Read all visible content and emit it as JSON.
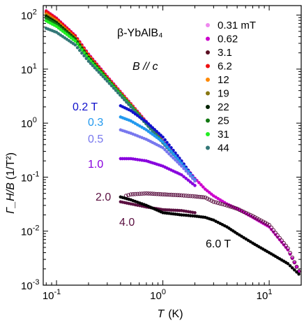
{
  "chart_data": {
    "type": "scatter",
    "title": "",
    "sample": "β-YbAlB₄",
    "field_orientation": "B // c",
    "xlabel": {
      "symbol": "T",
      "unit": "(K)"
    },
    "ylabel": {
      "symbol": "Γ_H/B",
      "unit": "(1/T²)"
    },
    "xscale": "log",
    "yscale": "log",
    "xlim": [
      0.075,
      20
    ],
    "ylim": [
      0.001,
      150
    ],
    "x_ticks": [
      {
        "value": 0.1,
        "base": "10",
        "exp": "-1"
      },
      {
        "value": 1,
        "base": "10",
        "exp": "0"
      },
      {
        "value": 10,
        "base": "10",
        "exp": "1"
      }
    ],
    "y_ticks": [
      {
        "value": 0.001,
        "base": "10",
        "exp": "-3"
      },
      {
        "value": 0.01,
        "base": "10",
        "exp": "-2"
      },
      {
        "value": 0.1,
        "base": "10",
        "exp": "-1"
      },
      {
        "value": 1,
        "base": "10",
        "exp": "0"
      },
      {
        "value": 10,
        "base": "10",
        "exp": "1"
      },
      {
        "value": 100,
        "base": "10",
        "exp": "2"
      }
    ],
    "legend": {
      "position": "top-right",
      "entries": [
        {
          "label": "0.31 mT",
          "color": "#ee88ee"
        },
        {
          "label": "0.62",
          "color": "#cc00cc"
        },
        {
          "label": "3.1",
          "color": "#5a0f22"
        },
        {
          "label": "6.2",
          "color": "#ee1111"
        },
        {
          "label": "12",
          "color": "#ff8800"
        },
        {
          "label": "19",
          "color": "#887711"
        },
        {
          "label": "22",
          "color": "#002200"
        },
        {
          "label": "25",
          "color": "#117711"
        },
        {
          "label": "31",
          "color": "#22ee22"
        },
        {
          "label": "44",
          "color": "#337777"
        }
      ]
    },
    "curve_labels": [
      {
        "text": "0.2 T",
        "color": "#1111cc"
      },
      {
        "text": "0.3",
        "color": "#2299ee"
      },
      {
        "text": "0.5",
        "color": "#7777ee"
      },
      {
        "text": "1.0",
        "color": "#8800dd"
      },
      {
        "text": "2.0",
        "color": "#5a0f40"
      },
      {
        "text": "4.0",
        "color": "#5a0f40"
      },
      {
        "text": "6.0 T",
        "color": "#000000"
      }
    ],
    "series": [
      {
        "name": "0.31 mT",
        "color": "#ee88ee",
        "x": [
          0.08,
          0.1,
          0.15,
          0.2,
          0.3,
          0.5,
          0.8,
          1.0,
          1.5,
          2.0
        ],
        "y": [
          115,
          85,
          40,
          18,
          7,
          2.2,
          0.75,
          0.45,
          0.18,
          0.09
        ]
      },
      {
        "name": "0.62",
        "color": "#cc00cc",
        "x": [
          0.08,
          0.1,
          0.15,
          0.2,
          0.3,
          0.5,
          0.8,
          1.0,
          1.5,
          2.0,
          2.5,
          3,
          4,
          5,
          7,
          10,
          15,
          19
        ],
        "y": [
          120,
          88,
          42,
          19,
          7.3,
          2.3,
          0.78,
          0.47,
          0.19,
          0.095,
          0.06,
          0.045,
          0.032,
          0.026,
          0.018,
          0.012,
          0.0045,
          0.0018
        ]
      },
      {
        "name": "3.1",
        "color": "#5a0f22",
        "x": [
          0.08,
          0.1,
          0.15,
          0.2,
          0.3,
          0.5,
          0.8,
          1.0,
          1.5,
          2.0
        ],
        "y": [
          112,
          82,
          39,
          18,
          6.9,
          2.2,
          0.75,
          0.45,
          0.18,
          0.09
        ]
      },
      {
        "name": "6.2",
        "color": "#ee1111",
        "x": [
          0.08,
          0.1,
          0.15,
          0.2,
          0.3,
          0.5,
          0.8,
          1.0,
          1.5,
          2.0
        ],
        "y": [
          118,
          86,
          41,
          18.5,
          7.1,
          2.25,
          0.76,
          0.46,
          0.18,
          0.09
        ]
      },
      {
        "name": "12",
        "color": "#ff8800",
        "x": [
          0.08,
          0.1,
          0.15,
          0.2,
          0.3,
          0.5,
          0.8,
          1.0,
          1.5,
          2.0
        ],
        "y": [
          105,
          78,
          38,
          17.5,
          6.8,
          2.2,
          0.74,
          0.45,
          0.18,
          0.09
        ]
      },
      {
        "name": "19",
        "color": "#887711",
        "x": [
          0.08,
          0.1,
          0.15,
          0.2,
          0.3,
          0.5,
          0.8,
          1.0,
          1.5,
          2.0
        ],
        "y": [
          100,
          75,
          37,
          17,
          6.7,
          2.15,
          0.74,
          0.45,
          0.18,
          0.09
        ]
      },
      {
        "name": "22",
        "color": "#002200",
        "x": [
          0.08,
          0.1,
          0.15,
          0.2,
          0.3,
          0.5,
          0.8,
          1.0,
          1.5,
          2.0
        ],
        "y": [
          95,
          72,
          36,
          16.5,
          6.6,
          2.1,
          0.73,
          0.44,
          0.18,
          0.09
        ]
      },
      {
        "name": "25",
        "color": "#117711",
        "x": [
          0.08,
          0.1,
          0.15,
          0.2,
          0.3,
          0.5,
          0.8,
          1.0,
          1.5,
          2.0
        ],
        "y": [
          88,
          68,
          35,
          16,
          6.5,
          2.1,
          0.73,
          0.44,
          0.18,
          0.09
        ]
      },
      {
        "name": "31",
        "color": "#22ee22",
        "x": [
          0.08,
          0.1,
          0.15,
          0.2,
          0.3,
          0.5,
          0.8,
          1.0,
          1.5,
          2.0
        ],
        "y": [
          78,
          62,
          33,
          15.5,
          6.3,
          2.05,
          0.72,
          0.44,
          0.18,
          0.09
        ]
      },
      {
        "name": "44",
        "color": "#337777",
        "x": [
          0.08,
          0.1,
          0.15,
          0.2,
          0.3,
          0.5,
          0.8,
          1.0,
          1.5,
          2.0
        ],
        "y": [
          57,
          48,
          28,
          14,
          6.0,
          2.0,
          0.71,
          0.43,
          0.18,
          0.09
        ]
      },
      {
        "name": "0.2 T",
        "color": "#1111cc",
        "x": [
          0.4,
          0.5,
          0.7,
          1.0,
          1.5,
          2.0
        ],
        "y": [
          2.1,
          1.7,
          1.05,
          0.55,
          0.2,
          0.09
        ]
      },
      {
        "name": "0.3",
        "color": "#2299ee",
        "x": [
          0.4,
          0.5,
          0.7,
          1.0,
          1.5,
          2.0
        ],
        "y": [
          1.3,
          1.1,
          0.75,
          0.45,
          0.18,
          0.09
        ]
      },
      {
        "name": "0.5",
        "color": "#7777ee",
        "x": [
          0.4,
          0.5,
          0.7,
          1.0,
          1.5,
          2.0
        ],
        "y": [
          0.75,
          0.65,
          0.5,
          0.35,
          0.16,
          0.085
        ]
      },
      {
        "name": "1.0",
        "color": "#8800dd",
        "x": [
          0.4,
          0.5,
          0.7,
          1.0,
          1.5,
          2.0
        ],
        "y": [
          0.22,
          0.22,
          0.2,
          0.16,
          0.11,
          0.07
        ]
      },
      {
        "name": "2.0",
        "color": "#5a0f40",
        "x": [
          0.45,
          0.5,
          0.7,
          1.0,
          1.5,
          2.0,
          2.5,
          3,
          4,
          5,
          7,
          10,
          15,
          19
        ],
        "y": [
          0.045,
          0.048,
          0.05,
          0.048,
          0.046,
          0.044,
          0.042,
          0.035,
          0.03,
          0.026,
          0.019,
          0.013,
          0.0048,
          0.0018
        ]
      },
      {
        "name": "4.0",
        "color": "#5a0f40",
        "x": [
          0.4,
          0.5,
          0.7,
          1.0,
          1.5,
          2.0
        ],
        "y": [
          0.035,
          0.032,
          0.028,
          0.025,
          0.024,
          0.022
        ]
      },
      {
        "name": "6.0 T",
        "color": "#000000",
        "x": [
          0.4,
          0.5,
          0.7,
          1.0,
          1.5,
          2.0,
          2.5,
          3,
          4,
          5,
          7,
          10,
          15,
          19
        ],
        "y": [
          0.043,
          0.038,
          0.03,
          0.022,
          0.02,
          0.019,
          0.018,
          0.016,
          0.012,
          0.009,
          0.006,
          0.004,
          0.0025,
          0.0016
        ]
      }
    ]
  }
}
